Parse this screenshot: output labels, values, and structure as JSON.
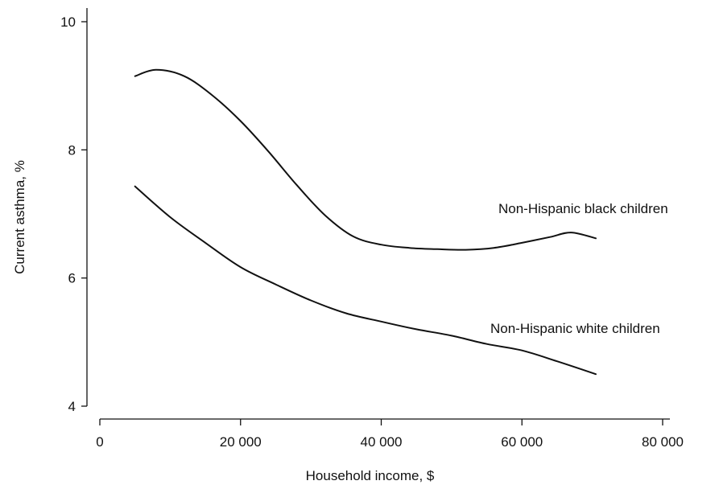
{
  "chart_data": {
    "type": "line",
    "xlabel": "Household income, $",
    "ylabel": "Current asthma, %",
    "xlim": [
      -2000,
      82000
    ],
    "ylim": [
      4,
      10.2
    ],
    "xticks": [
      {
        "value": 0,
        "label": "0"
      },
      {
        "value": 20000,
        "label": "20 000"
      },
      {
        "value": 40000,
        "label": "40 000"
      },
      {
        "value": 60000,
        "label": "60 000"
      },
      {
        "value": 80000,
        "label": "80 000"
      }
    ],
    "yticks": [
      {
        "value": 4,
        "label": "4"
      },
      {
        "value": 6,
        "label": "6"
      },
      {
        "value": 8,
        "label": "8"
      },
      {
        "value": 10,
        "label": "10"
      }
    ],
    "grid": false,
    "series": [
      {
        "name": "Non-Hispanic black children",
        "color": "#111111",
        "x": [
          5000,
          8000,
          12000,
          16000,
          20000,
          24000,
          28000,
          32000,
          36000,
          40000,
          44000,
          48000,
          52000,
          56000,
          60000,
          64000,
          67000,
          70500
        ],
        "y": [
          9.15,
          9.25,
          9.15,
          8.85,
          8.45,
          7.97,
          7.45,
          6.98,
          6.65,
          6.52,
          6.47,
          6.45,
          6.44,
          6.47,
          6.55,
          6.64,
          6.71,
          6.62
        ]
      },
      {
        "name": "Non-Hispanic white children",
        "color": "#111111",
        "x": [
          5000,
          10000,
          15000,
          20000,
          25000,
          30000,
          35000,
          40000,
          45000,
          50000,
          55000,
          60000,
          65000,
          70500
        ],
        "y": [
          7.43,
          6.95,
          6.55,
          6.17,
          5.9,
          5.65,
          5.45,
          5.32,
          5.2,
          5.1,
          4.97,
          4.87,
          4.7,
          4.5
        ]
      }
    ]
  }
}
